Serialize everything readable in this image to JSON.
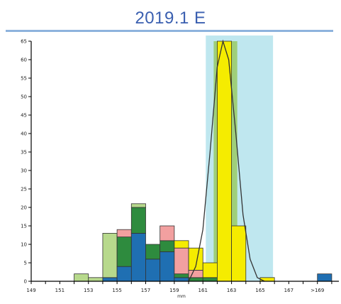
{
  "chart_data": {
    "type": "bar",
    "title": "2019.1 E",
    "xlabel": "mm",
    "ylabel": "",
    "ylim": [
      0,
      65
    ],
    "y_ticks": [
      0,
      5,
      10,
      15,
      20,
      25,
      30,
      35,
      40,
      45,
      50,
      55,
      60,
      65
    ],
    "x_tick_labels": [
      "149",
      "151",
      "153",
      "155",
      "157",
      "159",
      "161",
      "163",
      "165",
      "167",
      ">169"
    ],
    "bin_start": 149,
    "bin_width": 1,
    "grid": false,
    "legend": "none",
    "highlight_range": [
      161.2,
      165.9
    ],
    "bins": [
      {
        "x": 152,
        "blue": 0,
        "darkgreen": 0,
        "pink": 0,
        "lightgreen": 2,
        "yellow": 0
      },
      {
        "x": 153,
        "blue": 0,
        "darkgreen": 0,
        "pink": 0,
        "lightgreen": 1,
        "yellow": 0
      },
      {
        "x": 154,
        "blue": 1,
        "darkgreen": 0,
        "pink": 0,
        "lightgreen": 12,
        "yellow": 0
      },
      {
        "x": 155,
        "blue": 4,
        "darkgreen": 8,
        "pink": 2,
        "lightgreen": 0,
        "yellow": 0
      },
      {
        "x": 156,
        "blue": 13,
        "darkgreen": 7,
        "pink": 0,
        "lightgreen": 1,
        "yellow": 0
      },
      {
        "x": 157,
        "blue": 6,
        "darkgreen": 4,
        "pink": 0,
        "lightgreen": 0,
        "yellow": 0
      },
      {
        "x": 158,
        "blue": 8,
        "darkgreen": 3,
        "pink": 4,
        "lightgreen": 0,
        "yellow": 0
      },
      {
        "x": 159,
        "blue": 1,
        "darkgreen": 1,
        "pink": 7,
        "lightgreen": 0,
        "yellow": 2
      },
      {
        "x": 160,
        "blue": 0,
        "darkgreen": 1,
        "pink": 2,
        "lightgreen": 0,
        "yellow": 6
      },
      {
        "x": 161,
        "blue": 0,
        "darkgreen": 1,
        "pink": 0,
        "lightgreen": 0,
        "yellow": 4
      },
      {
        "x": 162,
        "blue": 0,
        "darkgreen": 0,
        "pink": 0,
        "lightgreen": 0,
        "yellow": 65
      },
      {
        "x": 163,
        "blue": 0,
        "darkgreen": 0,
        "pink": 0,
        "lightgreen": 0,
        "yellow": 15
      },
      {
        "x": 164,
        "blue": 0,
        "darkgreen": 0,
        "pink": 0,
        "lightgreen": 0,
        "yellow": 0
      },
      {
        "x": 165,
        "blue": 0,
        "darkgreen": 0,
        "pink": 0,
        "lightgreen": 0,
        "yellow": 1
      },
      {
        "x": 169,
        "blue": 2,
        "darkgreen": 0,
        "pink": 0,
        "lightgreen": 0,
        "yellow": 0
      }
    ],
    "curve": [
      {
        "x": 160.0,
        "y": 0
      },
      {
        "x": 160.5,
        "y": 4
      },
      {
        "x": 161.0,
        "y": 14
      },
      {
        "x": 161.5,
        "y": 35
      },
      {
        "x": 162.0,
        "y": 58
      },
      {
        "x": 162.4,
        "y": 65
      },
      {
        "x": 162.8,
        "y": 60
      },
      {
        "x": 163.3,
        "y": 40
      },
      {
        "x": 163.8,
        "y": 18
      },
      {
        "x": 164.3,
        "y": 6
      },
      {
        "x": 164.8,
        "y": 1
      },
      {
        "x": 165.3,
        "y": 0
      }
    ],
    "colors": {
      "blue": "#1f6fb2",
      "darkgreen": "#2e8b3e",
      "pink": "#f2a0a0",
      "lightgreen": "#b7d98c",
      "yellow": "#f5ec00",
      "highlight": "#bfe7ef",
      "peak_band": "#9fcf7a",
      "title": "#3a5fb0"
    }
  }
}
